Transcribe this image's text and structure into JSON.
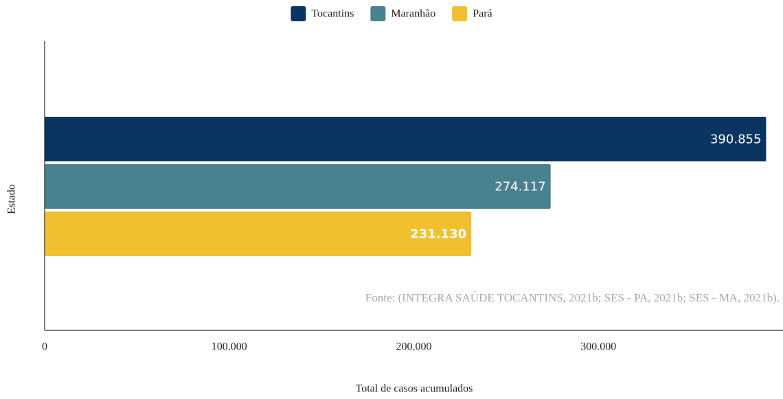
{
  "chart_data": {
    "type": "barh",
    "categories": [
      null
    ],
    "series": [
      {
        "name": "Tocantins",
        "color": "#0a3560",
        "values": [
          390855
        ],
        "value_labels": [
          "390.855"
        ]
      },
      {
        "name": "Maranhão",
        "color": "#4a818e",
        "values": [
          274117
        ],
        "value_labels": [
          "274.117"
        ]
      },
      {
        "name": "Pará",
        "color": "#f0c030",
        "values": [
          231130
        ],
        "value_labels": [
          "231.130"
        ]
      }
    ],
    "xlabel": "Total de casos acumulados",
    "ylabel": "Estado",
    "annotation": "Fonte: (INTEGRA SAÚDE TOCANTINS, 2021b; SES - PA, 2021b; SES - MA, 2021b).",
    "xlim": [
      0,
      400000
    ],
    "xticks": [
      0,
      {
        "value": 100000,
        "label": "100.000"
      },
      {
        "value": 200000,
        "label": "200.000"
      },
      {
        "value": 300000,
        "label": "300.000"
      }
    ],
    "legend": "top"
  }
}
